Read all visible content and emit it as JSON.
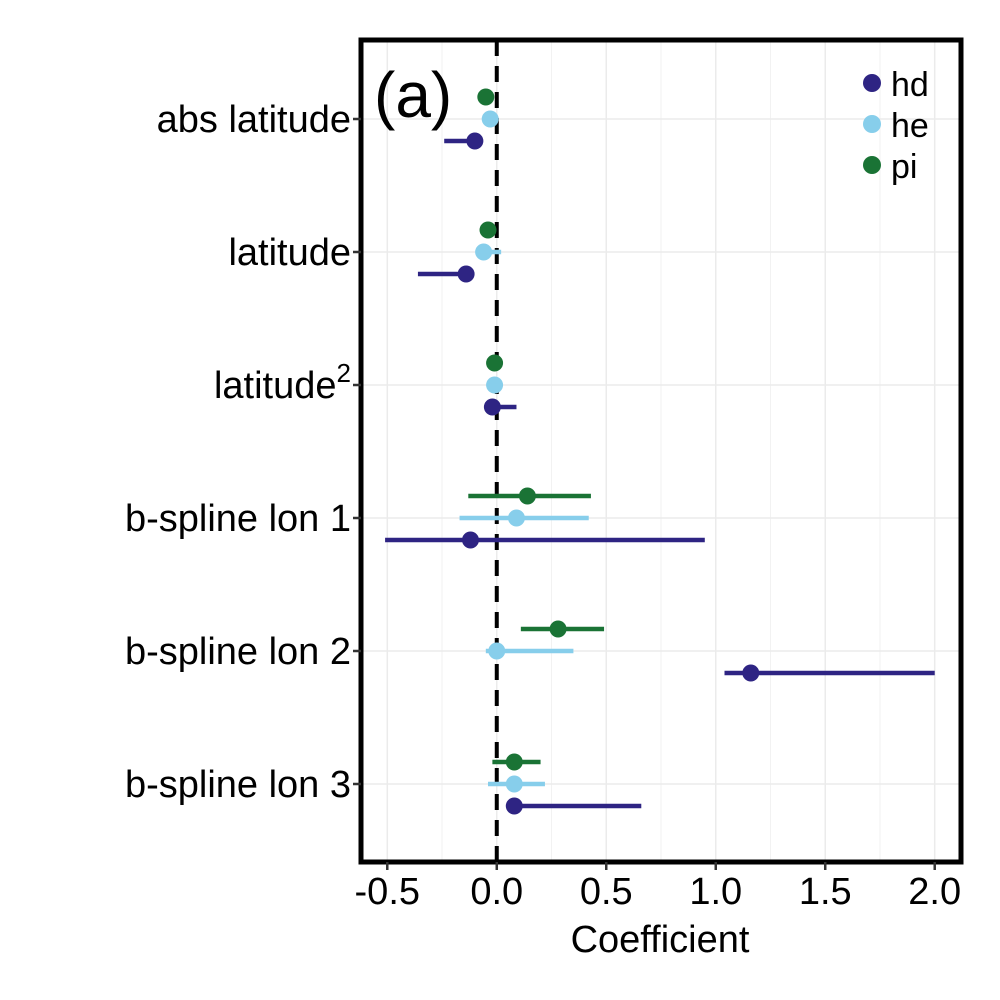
{
  "chart_data": {
    "type": "scatter",
    "panel_label": "(a)",
    "xlabel": "Coefficient",
    "ylabel": "",
    "xlim": [
      -0.62,
      2.12
    ],
    "xticks": [
      -0.5,
      0.0,
      0.5,
      1.0,
      1.5,
      2.0
    ],
    "xtick_labels": [
      "-0.5",
      "0.0",
      "0.5",
      "1.0",
      "1.5",
      "2.0"
    ],
    "reference_line": 0.0,
    "grid": true,
    "legend_position": "top-right",
    "categories": [
      {
        "label": "abs latitude",
        "sup": ""
      },
      {
        "label": "latitude",
        "sup": ""
      },
      {
        "label": "latitude",
        "sup": "2"
      },
      {
        "label": "b-spline lon 1",
        "sup": ""
      },
      {
        "label": "b-spline lon 2",
        "sup": ""
      },
      {
        "label": "b-spline lon 3",
        "sup": ""
      }
    ],
    "series": [
      {
        "name": "hd",
        "color": "#2e2483",
        "points": [
          {
            "estimate": -0.1,
            "low": -0.24,
            "high": -0.1
          },
          {
            "estimate": -0.14,
            "low": -0.36,
            "high": -0.14
          },
          {
            "estimate": -0.02,
            "low": -0.02,
            "high": 0.09
          },
          {
            "estimate": -0.12,
            "low": -0.51,
            "high": 0.95
          },
          {
            "estimate": 1.16,
            "low": 1.04,
            "high": 2.0
          },
          {
            "estimate": 0.08,
            "low": 0.08,
            "high": 0.66
          }
        ]
      },
      {
        "name": "he",
        "color": "#87ceeb",
        "points": [
          {
            "estimate": -0.03,
            "low": -0.03,
            "high": -0.03
          },
          {
            "estimate": -0.06,
            "low": -0.06,
            "high": 0.02
          },
          {
            "estimate": -0.01,
            "low": -0.01,
            "high": -0.01
          },
          {
            "estimate": 0.09,
            "low": -0.17,
            "high": 0.42
          },
          {
            "estimate": 0.0,
            "low": -0.05,
            "high": 0.35
          },
          {
            "estimate": 0.08,
            "low": -0.04,
            "high": 0.22
          }
        ]
      },
      {
        "name": "pi",
        "color": "#1a7335",
        "points": [
          {
            "estimate": -0.05,
            "low": -0.05,
            "high": -0.05
          },
          {
            "estimate": -0.04,
            "low": -0.04,
            "high": -0.04
          },
          {
            "estimate": -0.01,
            "low": -0.01,
            "high": -0.01
          },
          {
            "estimate": 0.14,
            "low": -0.13,
            "high": 0.43
          },
          {
            "estimate": 0.28,
            "low": 0.11,
            "high": 0.49
          },
          {
            "estimate": 0.08,
            "low": -0.02,
            "high": 0.2
          }
        ]
      }
    ]
  }
}
